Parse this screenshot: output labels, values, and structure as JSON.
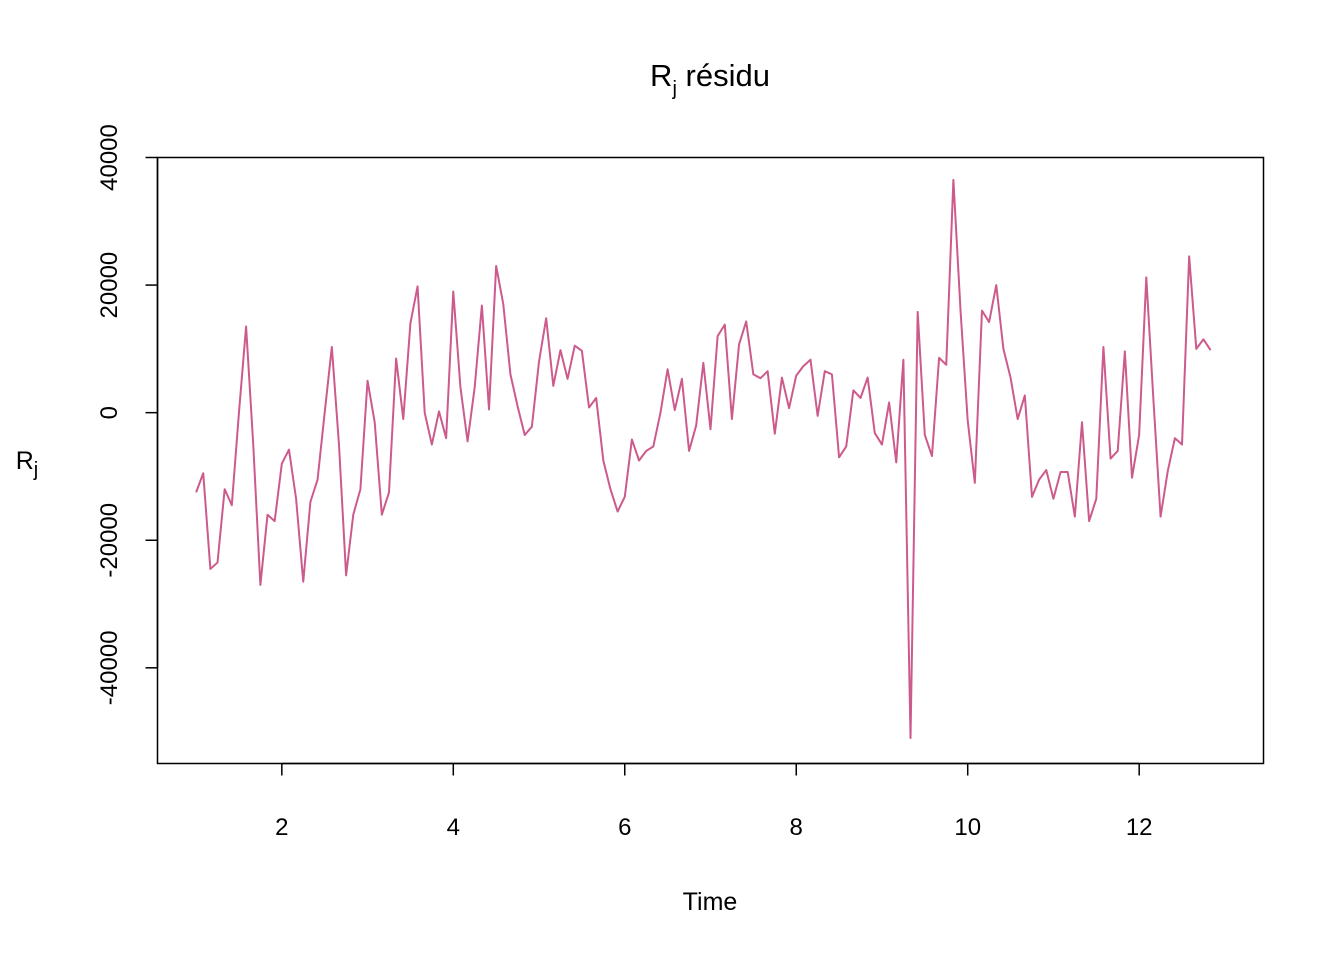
{
  "chart_data": {
    "type": "line",
    "title": "R",
    "title_subscript": "j",
    "title_suffix": " résidu",
    "xlabel": "Time",
    "ylabel": "R",
    "ylabel_subscript": "j",
    "xlim": [
      0.55,
      13.45
    ],
    "ylim": [
      -55000,
      40000
    ],
    "x_ticks": [
      {
        "value": 2,
        "label": "2"
      },
      {
        "value": 4,
        "label": "4"
      },
      {
        "value": 6,
        "label": "6"
      },
      {
        "value": 8,
        "label": "8"
      },
      {
        "value": 10,
        "label": "10"
      },
      {
        "value": 12,
        "label": "12"
      }
    ],
    "y_ticks": [
      {
        "value": -40000,
        "label": "-40000"
      },
      {
        "value": -20000,
        "label": "-20000"
      },
      {
        "value": 0,
        "label": "0"
      },
      {
        "value": 20000,
        "label": "20000"
      },
      {
        "value": 40000,
        "label": "40000"
      }
    ],
    "grid": false,
    "legend": "none",
    "series": [
      {
        "color": "#cd5a8c",
        "x_start": 1,
        "x_step": 0.08333,
        "values": [
          -12500,
          -9500,
          -24500,
          -23500,
          -12000,
          -14500,
          0,
          13500,
          -5000,
          -27000,
          -16000,
          -17000,
          -8000,
          -5800,
          -13500,
          -26500,
          -14000,
          -10500,
          0,
          10300,
          -5000,
          -25500,
          -16000,
          -12000,
          5000,
          -1500,
          -16000,
          -12500,
          8500,
          -1000,
          14000,
          19800,
          0,
          -5000,
          200,
          -4000,
          19000,
          4000,
          -4500,
          4000,
          16800,
          500,
          23000,
          17000,
          6000,
          1000,
          -3500,
          -2200,
          8000,
          14800,
          4200,
          9800,
          5300,
          10500,
          9700,
          800,
          2300,
          -7500,
          -12000,
          -15500,
          -13200,
          -4200,
          -7500,
          -6000,
          -5300,
          0,
          6800,
          400,
          5300,
          -6000,
          -2000,
          7800,
          -2600,
          12000,
          13800,
          -1000,
          10700,
          14300,
          6000,
          5400,
          6500,
          -3300,
          5500,
          700,
          5800,
          7300,
          8300,
          -500,
          6500,
          6000,
          -7000,
          -5300,
          3500,
          2300,
          5500,
          -3200,
          -5000,
          1600,
          -7800,
          8300,
          -51000,
          15800,
          -3500,
          -6800,
          8600,
          7500,
          36500,
          16000,
          -1200,
          -11000,
          16000,
          14200,
          20000,
          10000,
          5500,
          -1000,
          2700,
          -13200,
          -10500,
          -9000,
          -13500,
          -9300,
          -9300,
          -16300,
          -1500,
          -17000,
          -13500,
          10300,
          -7200,
          -6000,
          9600,
          -10200,
          -3500,
          21200,
          2000,
          -16300,
          -9200,
          -4000,
          -5000,
          24500,
          10000,
          11500,
          9800
        ]
      }
    ]
  }
}
